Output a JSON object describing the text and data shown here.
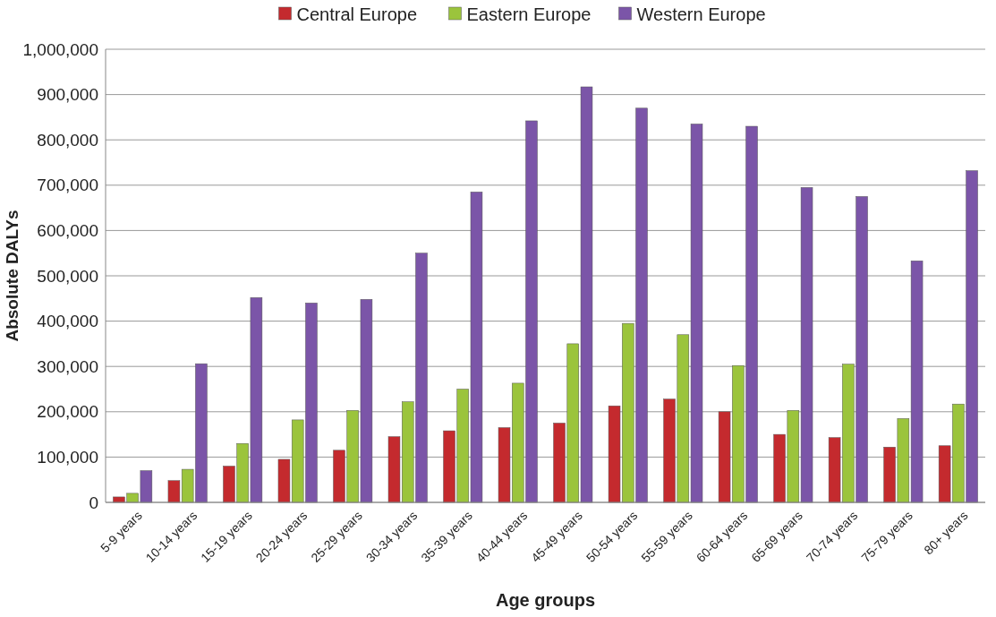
{
  "chart_data": {
    "type": "bar",
    "xlabel": "Age groups",
    "ylabel": "Absolute DALYs",
    "categories": [
      "5-9 years",
      "10-14 years",
      "15-19 years",
      "20-24 years",
      "25-29 years",
      "30-34 years",
      "35-39 years",
      "40-44 years",
      "45-49 years",
      "50-54 years",
      "55-59 years",
      "60-64 years",
      "65-69 years",
      "70-74 years",
      "75-79 years",
      "80+ years"
    ],
    "series": [
      {
        "name": "Central Europe",
        "color": "#c42a2e",
        "values": [
          12000,
          48000,
          80000,
          95000,
          115000,
          145000,
          158000,
          165000,
          175000,
          213000,
          228000,
          200000,
          150000,
          143000,
          122000,
          125000
        ]
      },
      {
        "name": "Eastern Europe",
        "color": "#9bc43c",
        "values": [
          20000,
          73000,
          130000,
          182000,
          203000,
          222000,
          250000,
          263000,
          350000,
          395000,
          370000,
          302000,
          203000,
          305000,
          185000,
          217000
        ]
      },
      {
        "name": "Western Europe",
        "color": "#7b55a8",
        "values": [
          70000,
          306000,
          452000,
          440000,
          448000,
          550000,
          685000,
          842000,
          917000,
          870000,
          835000,
          830000,
          695000,
          675000,
          533000,
          732000
        ]
      }
    ],
    "ylim": [
      0,
      1000000
    ],
    "yticks": [
      {
        "value": 0,
        "label": "0"
      },
      {
        "value": 100000,
        "label": "100,000"
      },
      {
        "value": 200000,
        "label": "200,000"
      },
      {
        "value": 300000,
        "label": "300,000"
      },
      {
        "value": 400000,
        "label": "400,000"
      },
      {
        "value": 500000,
        "label": "500,000"
      },
      {
        "value": 600000,
        "label": "600,000"
      },
      {
        "value": 700000,
        "label": "700,000"
      },
      {
        "value": 800000,
        "label": "800,000"
      },
      {
        "value": 900000,
        "label": "900,000"
      },
      {
        "value": 1000000,
        "label": "1,000,000"
      }
    ],
    "grid": "y",
    "legend": "top"
  }
}
